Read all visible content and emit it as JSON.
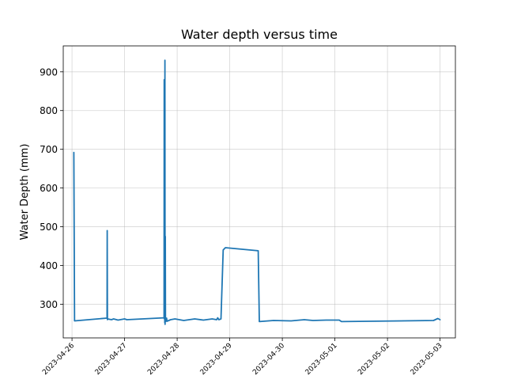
{
  "chart_data": {
    "type": "line",
    "title": "Water depth versus time",
    "xlabel": "",
    "ylabel": "Water Depth (mm)",
    "x_ticks": [
      "2023-04-26",
      "2023-04-27",
      "2023-04-28",
      "2023-04-29",
      "2023-04-30",
      "2023-05-01",
      "2023-05-02",
      "2023-05-03"
    ],
    "y_ticks": [
      300,
      400,
      500,
      600,
      700,
      800,
      900
    ],
    "xlim": [
      "2023-04-25T20:00",
      "2023-05-03T07:00"
    ],
    "ylim": [
      213,
      967
    ],
    "grid": true,
    "line_color": "#1f77b4",
    "series": [
      {
        "x": [
          "2023-04-26T00:50",
          "2023-04-26T01:10",
          "2023-04-26T16:00",
          "2023-04-26T16:05",
          "2023-04-26T16:10",
          "2023-04-26T16:15",
          "2023-04-26T18:00",
          "2023-04-26T19:00",
          "2023-04-26T21:00",
          "2023-04-27T00:00",
          "2023-04-27T01:00",
          "2023-04-27T18:00",
          "2023-04-27T18:05",
          "2023-04-27T18:10",
          "2023-04-27T18:15",
          "2023-04-27T18:20",
          "2023-04-27T18:25",
          "2023-04-27T18:30",
          "2023-04-27T18:35",
          "2023-04-27T18:40",
          "2023-04-27T18:45",
          "2023-04-27T18:50",
          "2023-04-27T18:55",
          "2023-04-27T19:00",
          "2023-04-27T19:10",
          "2023-04-27T19:20",
          "2023-04-27T21:00",
          "2023-04-27T23:00",
          "2023-04-28T03:00",
          "2023-04-28T08:00",
          "2023-04-28T12:00",
          "2023-04-28T16:00",
          "2023-04-28T18:00",
          "2023-04-28T18:30",
          "2023-04-28T19:00",
          "2023-04-28T20:00",
          "2023-04-28T21:00",
          "2023-04-28T22:00",
          "2023-04-29T13:00",
          "2023-04-29T13:30",
          "2023-04-29T20:00",
          "2023-04-30T04:00",
          "2023-04-30T10:00",
          "2023-04-30T14:00",
          "2023-04-30T20:00",
          "2023-05-01T02:00",
          "2023-05-01T03:00",
          "2023-05-02T21:00",
          "2023-05-02T23:00",
          "2023-05-03T00:00"
        ],
        "y": [
          692,
          257,
          264,
          490,
          260,
          262,
          260,
          262,
          259,
          262,
          260,
          265,
          880,
          262,
          875,
          252,
          930,
          248,
          475,
          265,
          255,
          260,
          262,
          258,
          264,
          256,
          260,
          262,
          258,
          262,
          259,
          262,
          260,
          265,
          260,
          262,
          440,
          446,
          438,
          255,
          258,
          257,
          260,
          258,
          259,
          259,
          255,
          258,
          263,
          260
        ]
      }
    ]
  }
}
